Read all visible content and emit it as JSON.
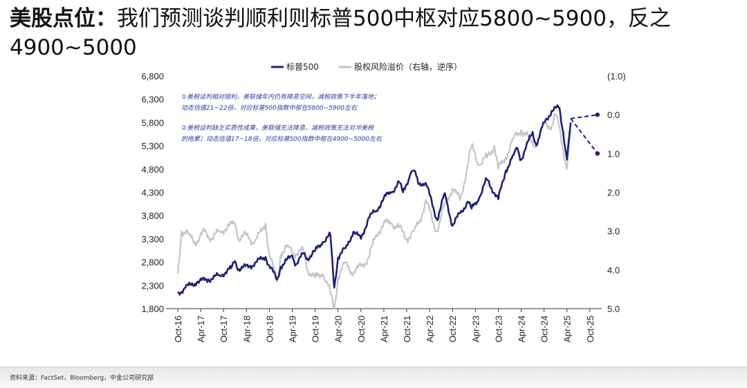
{
  "title": {
    "bold": "美股点位：",
    "rest": "我们预测谈判顺利则标普500中枢对应5800~5900，反之4900~5000"
  },
  "source": "资料来源：FactSet，Bloomberg，中金公司研究部",
  "colors": {
    "sp500": "#1c1f7a",
    "erp": "#c4c4c4",
    "neg_label": "#cc2233"
  },
  "chart_data": {
    "type": "line",
    "title": "",
    "xlabel": "",
    "ylabel": "",
    "left_axis": {
      "min": 1800,
      "max": 6800,
      "ticks": [
        "1,800",
        "2,300",
        "2,800",
        "3,300",
        "3,800",
        "4,300",
        "4,800",
        "5,300",
        "5,800",
        "6,300",
        "6,800"
      ]
    },
    "right_axis": {
      "inverted": true,
      "min": -1.0,
      "max": 5.0,
      "ticks": [
        "(1.0)",
        "0.0",
        "1.0",
        "2.0",
        "3.0",
        "4.0",
        "5.0"
      ]
    },
    "x_ticks": [
      "Oct-16",
      "Apr-17",
      "Oct-17",
      "Apr-18",
      "Oct-18",
      "Apr-19",
      "Oct-19",
      "Apr-20",
      "Oct-20",
      "Apr-21",
      "Oct-21",
      "Apr-22",
      "Oct-22",
      "Apr-23",
      "Oct-23",
      "Apr-24",
      "Oct-24",
      "Apr-25",
      "Oct-25"
    ],
    "legend": [
      "标普500",
      "股权风险溢价（右轴，逆序）"
    ],
    "legend_position": "top-center",
    "series": [
      {
        "name": "标普500",
        "axis": "left",
        "points": [
          [
            "2016-10",
            2130
          ],
          [
            "2016-12",
            2250
          ],
          [
            "2017-03",
            2370
          ],
          [
            "2017-06",
            2430
          ],
          [
            "2017-09",
            2510
          ],
          [
            "2017-12",
            2670
          ],
          [
            "2018-01",
            2820
          ],
          [
            "2018-02",
            2650
          ],
          [
            "2018-05",
            2720
          ],
          [
            "2018-09",
            2910
          ],
          [
            "2018-10",
            2720
          ],
          [
            "2018-12",
            2420
          ],
          [
            "2019-01",
            2700
          ],
          [
            "2019-04",
            2940
          ],
          [
            "2019-05",
            2750
          ],
          [
            "2019-07",
            2980
          ],
          [
            "2019-08",
            2880
          ],
          [
            "2019-10",
            3040
          ],
          [
            "2019-12",
            3230
          ],
          [
            "2020-02",
            3380
          ],
          [
            "2020-03",
            2250
          ],
          [
            "2020-04",
            2900
          ],
          [
            "2020-06",
            3100
          ],
          [
            "2020-08",
            3450
          ],
          [
            "2020-10",
            3300
          ],
          [
            "2020-12",
            3750
          ],
          [
            "2021-02",
            3900
          ],
          [
            "2021-04",
            4180
          ],
          [
            "2021-06",
            4300
          ],
          [
            "2021-08",
            4520
          ],
          [
            "2021-09",
            4300
          ],
          [
            "2021-11",
            4700
          ],
          [
            "2021-12",
            4770
          ],
          [
            "2022-01",
            4500
          ],
          [
            "2022-03",
            4500
          ],
          [
            "2022-06",
            3700
          ],
          [
            "2022-08",
            4280
          ],
          [
            "2022-10",
            3580
          ],
          [
            "2022-12",
            3850
          ],
          [
            "2023-02",
            4100
          ],
          [
            "2023-03",
            3950
          ],
          [
            "2023-05",
            4180
          ],
          [
            "2023-07",
            4580
          ],
          [
            "2023-10",
            4150
          ],
          [
            "2023-12",
            4770
          ],
          [
            "2024-02",
            5100
          ],
          [
            "2024-03",
            5250
          ],
          [
            "2024-04",
            5000
          ],
          [
            "2024-07",
            5600
          ],
          [
            "2024-08",
            5300
          ],
          [
            "2024-10",
            5800
          ],
          [
            "2024-12",
            6050
          ],
          [
            "2025-02",
            6120
          ],
          [
            "2025-03",
            5600
          ],
          [
            "2025-04",
            5000
          ],
          [
            "2025-05",
            5800
          ]
        ]
      },
      {
        "name": "股权风险溢价（右轴，逆序）",
        "axis": "right",
        "points": [
          [
            "2016-10",
            4.1
          ],
          [
            "2016-11",
            3.0
          ],
          [
            "2017-01",
            3.1
          ],
          [
            "2017-03",
            3.3
          ],
          [
            "2017-05",
            3.0
          ],
          [
            "2017-07",
            3.2
          ],
          [
            "2017-09",
            3.0
          ],
          [
            "2017-11",
            2.9
          ],
          [
            "2018-01",
            2.8
          ],
          [
            "2018-02",
            3.2
          ],
          [
            "2018-04",
            3.1
          ],
          [
            "2018-06",
            3.3
          ],
          [
            "2018-08",
            3.0
          ],
          [
            "2018-09",
            2.8
          ],
          [
            "2018-10",
            3.6
          ],
          [
            "2018-12",
            4.3
          ],
          [
            "2019-01",
            3.6
          ],
          [
            "2019-03",
            3.4
          ],
          [
            "2019-05",
            3.6
          ],
          [
            "2019-07",
            3.5
          ],
          [
            "2019-08",
            4.0
          ],
          [
            "2019-10",
            4.2
          ],
          [
            "2019-12",
            4.1
          ],
          [
            "2020-01",
            4.3
          ],
          [
            "2020-02",
            4.6
          ],
          [
            "2020-03",
            5.0
          ],
          [
            "2020-04",
            4.2
          ],
          [
            "2020-06",
            3.8
          ],
          [
            "2020-08",
            4.1
          ],
          [
            "2020-10",
            3.9
          ],
          [
            "2020-12",
            3.7
          ],
          [
            "2021-02",
            3.1
          ],
          [
            "2021-04",
            2.8
          ],
          [
            "2021-06",
            2.8
          ],
          [
            "2021-08",
            2.9
          ],
          [
            "2021-10",
            3.2
          ],
          [
            "2021-12",
            3.0
          ],
          [
            "2022-02",
            2.6
          ],
          [
            "2022-03",
            2.2
          ],
          [
            "2022-05",
            2.8
          ],
          [
            "2022-06",
            3.0
          ],
          [
            "2022-08",
            2.3
          ],
          [
            "2022-10",
            1.9
          ],
          [
            "2022-12",
            2.2
          ],
          [
            "2023-02",
            1.3
          ],
          [
            "2023-03",
            0.8
          ],
          [
            "2023-05",
            1.3
          ],
          [
            "2023-07",
            1.1
          ],
          [
            "2023-09",
            0.8
          ],
          [
            "2023-10",
            1.4
          ],
          [
            "2023-12",
            1.1
          ],
          [
            "2024-02",
            0.6
          ],
          [
            "2024-04",
            0.4
          ],
          [
            "2024-06",
            0.6
          ],
          [
            "2024-08",
            0.8
          ],
          [
            "2024-10",
            0.2
          ],
          [
            "2024-12",
            0.3
          ],
          [
            "2025-01",
            0.0
          ],
          [
            "2025-02",
            0.3
          ],
          [
            "2025-03",
            0.9
          ],
          [
            "2025-04",
            1.4
          ],
          [
            "2025-05",
            0.4
          ]
        ]
      }
    ],
    "projections": [
      {
        "axis": "right",
        "scenario": "①",
        "from": [
          "2025-05",
          0.1
        ],
        "to": [
          "2025-12",
          0.0
        ]
      },
      {
        "axis": "right",
        "scenario": "②",
        "from": [
          "2025-05",
          0.1
        ],
        "to": [
          "2025-12",
          1.0
        ]
      }
    ],
    "annotations": [
      "①美税谈判相对顺利，美联储年内仍有降息空间，减税政策下半年落地；",
      "动态估值21~22倍，对应标普500指数中枢在5800~5900左右",
      "②美税谈判缺乏实质性成果，美联储无法降息，减税政策无法对冲美税",
      "的拖累；动态估值17~18倍，对应标普500指数中枢在4900~5000左右"
    ]
  }
}
